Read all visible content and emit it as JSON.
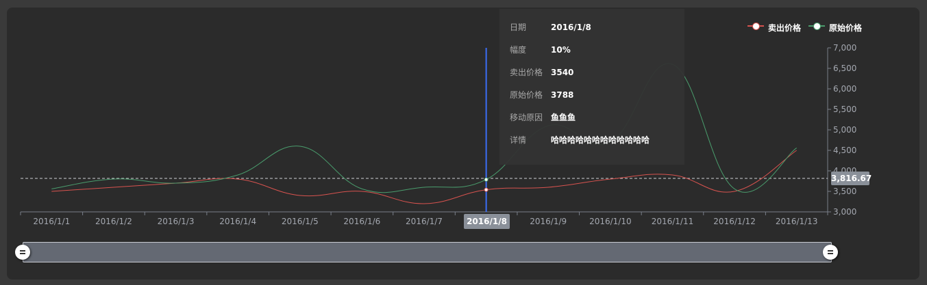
{
  "chart_data": {
    "type": "line",
    "x": [
      "2016/1/1",
      "2016/1/2",
      "2016/1/3",
      "2016/1/4",
      "2016/1/5",
      "2016/1/6",
      "2016/1/7",
      "2016/1/8",
      "2016/1/9",
      "2016/1/10",
      "2016/1/11",
      "2016/1/12",
      "2016/1/13"
    ],
    "series": [
      {
        "name": "卖出价格",
        "color": "#d9534f",
        "values": [
          3500,
          3600,
          3700,
          3800,
          3400,
          3500,
          3200,
          3540,
          3600,
          3800,
          3900,
          3500,
          4500
        ]
      },
      {
        "name": "原始价格",
        "color": "#4a9d6d",
        "values": [
          3560,
          3800,
          3700,
          3900,
          4600,
          3560,
          3600,
          3788,
          5100,
          4700,
          6600,
          3560,
          4560
        ]
      }
    ],
    "ylim": [
      3000,
      7000
    ],
    "yticks": [
      "3,000",
      "3,500",
      "4,000",
      "4,500",
      "5,000",
      "5,500",
      "6,000",
      "6,500",
      "7,000"
    ],
    "y_axis_position": "right",
    "legend_position": "top-right",
    "crosshair": {
      "x_label": "2016/1/8",
      "y_value": 3816.67,
      "y_label": "3,816.67"
    },
    "grid": false
  },
  "tooltip": {
    "rows": [
      {
        "key": "日期",
        "value": "2016/1/8"
      },
      {
        "key": "幅度",
        "value": "10%"
      },
      {
        "key": "卖出价格",
        "value": "3540"
      },
      {
        "key": "原始价格",
        "value": "3788"
      },
      {
        "key": "移动原因",
        "value": "鱼鱼鱼"
      },
      {
        "key": "详情",
        "value": "哈哈哈哈哈哈哈哈哈哈哈哈"
      }
    ]
  },
  "datazoom": {
    "start_percent": 0,
    "end_percent": 100
  }
}
